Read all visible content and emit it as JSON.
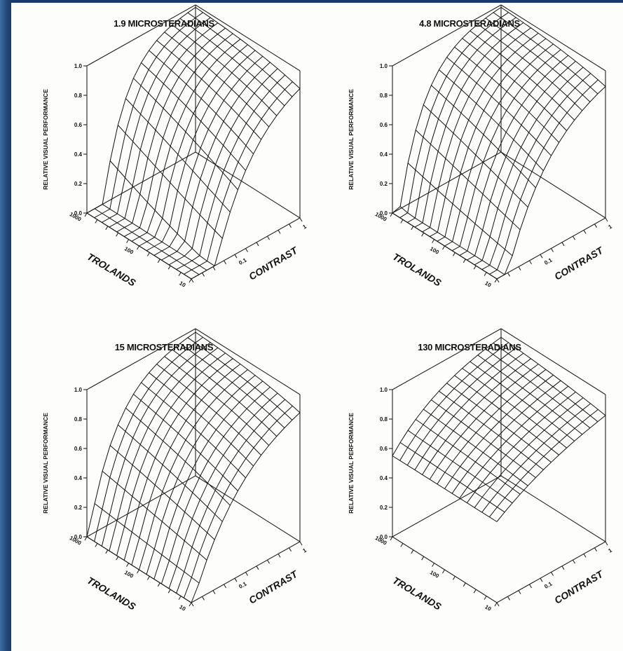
{
  "chart_data": [
    {
      "type": "surface",
      "title": "1.9 MICROSTERADIANS",
      "zlabel": "RELATIVE VISUAL PERFORMANCE",
      "xlabel": "TROLANDS",
      "ylabel": "CONTRAST",
      "zticks": [
        "0.0",
        "0.2",
        "0.4",
        "0.6",
        "0.8",
        "1.0"
      ],
      "xticks": [
        "10",
        "100",
        "1000"
      ],
      "yticks": [
        "0.1",
        "1"
      ],
      "zlim": [
        0,
        1
      ],
      "xlim_log10": [
        1,
        3
      ],
      "ylim_log10": [
        -1.7,
        0
      ],
      "surface": {
        "threshold": 0.22,
        "saturation": 0.55
      },
      "grid": true
    },
    {
      "type": "surface",
      "title": "4.8 MICROSTERADIANS",
      "zlabel": "RELATIVE VISUAL PERFORMANCE",
      "xlabel": "TROLANDS",
      "ylabel": "CONTRAST",
      "zticks": [
        "0.0",
        "0.2",
        "0.4",
        "0.6",
        "0.8",
        "1.0"
      ],
      "xticks": [
        "10",
        "100",
        "1000"
      ],
      "yticks": [
        "0.1",
        "1"
      ],
      "zlim": [
        0,
        1
      ],
      "xlim_log10": [
        1,
        3
      ],
      "ylim_log10": [
        -1.7,
        0
      ],
      "surface": {
        "threshold": 0.1,
        "saturation": 0.6
      },
      "grid": true
    },
    {
      "type": "surface",
      "title": "15 MICROSTERADIANS",
      "zlabel": "RELATIVE VISUAL PERFORMANCE",
      "xlabel": "TROLANDS",
      "ylabel": "CONTRAST",
      "zticks": [
        "0.0",
        "0.2",
        "0.4",
        "0.6",
        "0.8",
        "1.0"
      ],
      "xticks": [
        "10",
        "100",
        "1000"
      ],
      "yticks": [
        "0.1",
        "1"
      ],
      "zlim": [
        0,
        1
      ],
      "xlim_log10": [
        1,
        3
      ],
      "ylim_log10": [
        -1.7,
        0
      ],
      "surface": {
        "threshold": 0.02,
        "saturation": 0.7
      },
      "grid": true
    },
    {
      "type": "surface",
      "title": "130 MICROSTERADIANS",
      "zlabel": "RELATIVE VISUAL PERFORMANCE",
      "xlabel": "TROLANDS",
      "ylabel": "CONTRAST",
      "zticks": [
        "0.0",
        "0.2",
        "0.4",
        "0.6",
        "0.8",
        "1.0"
      ],
      "xticks": [
        "10",
        "100",
        "1000"
      ],
      "yticks": [
        "0.1",
        "1"
      ],
      "zlim": [
        0,
        1
      ],
      "xlim_log10": [
        1,
        3
      ],
      "ylim_log10": [
        -1.7,
        0
      ],
      "surface": {
        "threshold": 0.0,
        "saturation": 1.3,
        "min": 0.55
      },
      "grid": true
    }
  ]
}
